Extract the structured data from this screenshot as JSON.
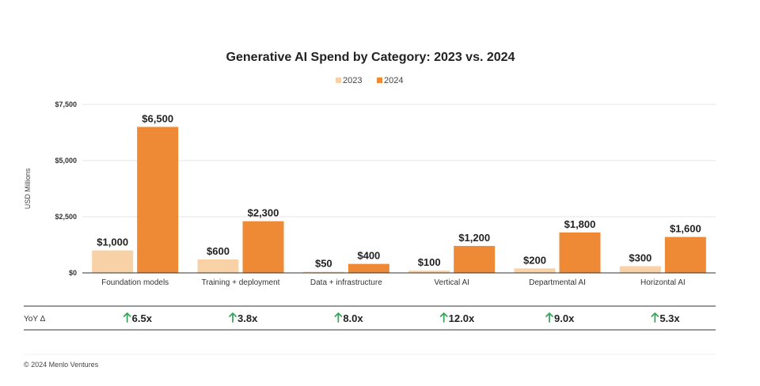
{
  "chart_data": {
    "type": "bar",
    "title": "Generative AI Spend by Category: 2023 vs. 2024",
    "ylabel": "USD Millions",
    "xlabel": "",
    "ylim": [
      0,
      7500
    ],
    "yticks": [
      0,
      2500,
      5000,
      7500
    ],
    "ytick_labels": [
      "$0",
      "$2,500",
      "$5,000",
      "$7,500"
    ],
    "grid": true,
    "legend_position": "top-center",
    "categories": [
      "Foundation models",
      "Training + deployment",
      "Data + infrastructure",
      "Vertical AI",
      "Departmental AI",
      "Horizontal AI"
    ],
    "series": [
      {
        "name": "2023",
        "color": "#F8D2A6",
        "values": [
          1000,
          600,
          50,
          100,
          200,
          300
        ],
        "labels": [
          "$1,000",
          "$600",
          "$50",
          "$100",
          "$200",
          "$300"
        ]
      },
      {
        "name": "2024",
        "color": "#EE8A35",
        "values": [
          6500,
          2300,
          400,
          1200,
          1800,
          1600
        ],
        "labels": [
          "$6,500",
          "$2,300",
          "$400",
          "$1,200",
          "$1,800",
          "$1,600"
        ]
      }
    ],
    "yoy": {
      "label": "YoY Δ",
      "arrow_color": "#3BA55C",
      "values": [
        "6.5x",
        "3.8x",
        "8.0x",
        "12.0x",
        "9.0x",
        "5.3x"
      ]
    }
  },
  "footer": {
    "text": "© 2024 Menlo Ventures"
  }
}
